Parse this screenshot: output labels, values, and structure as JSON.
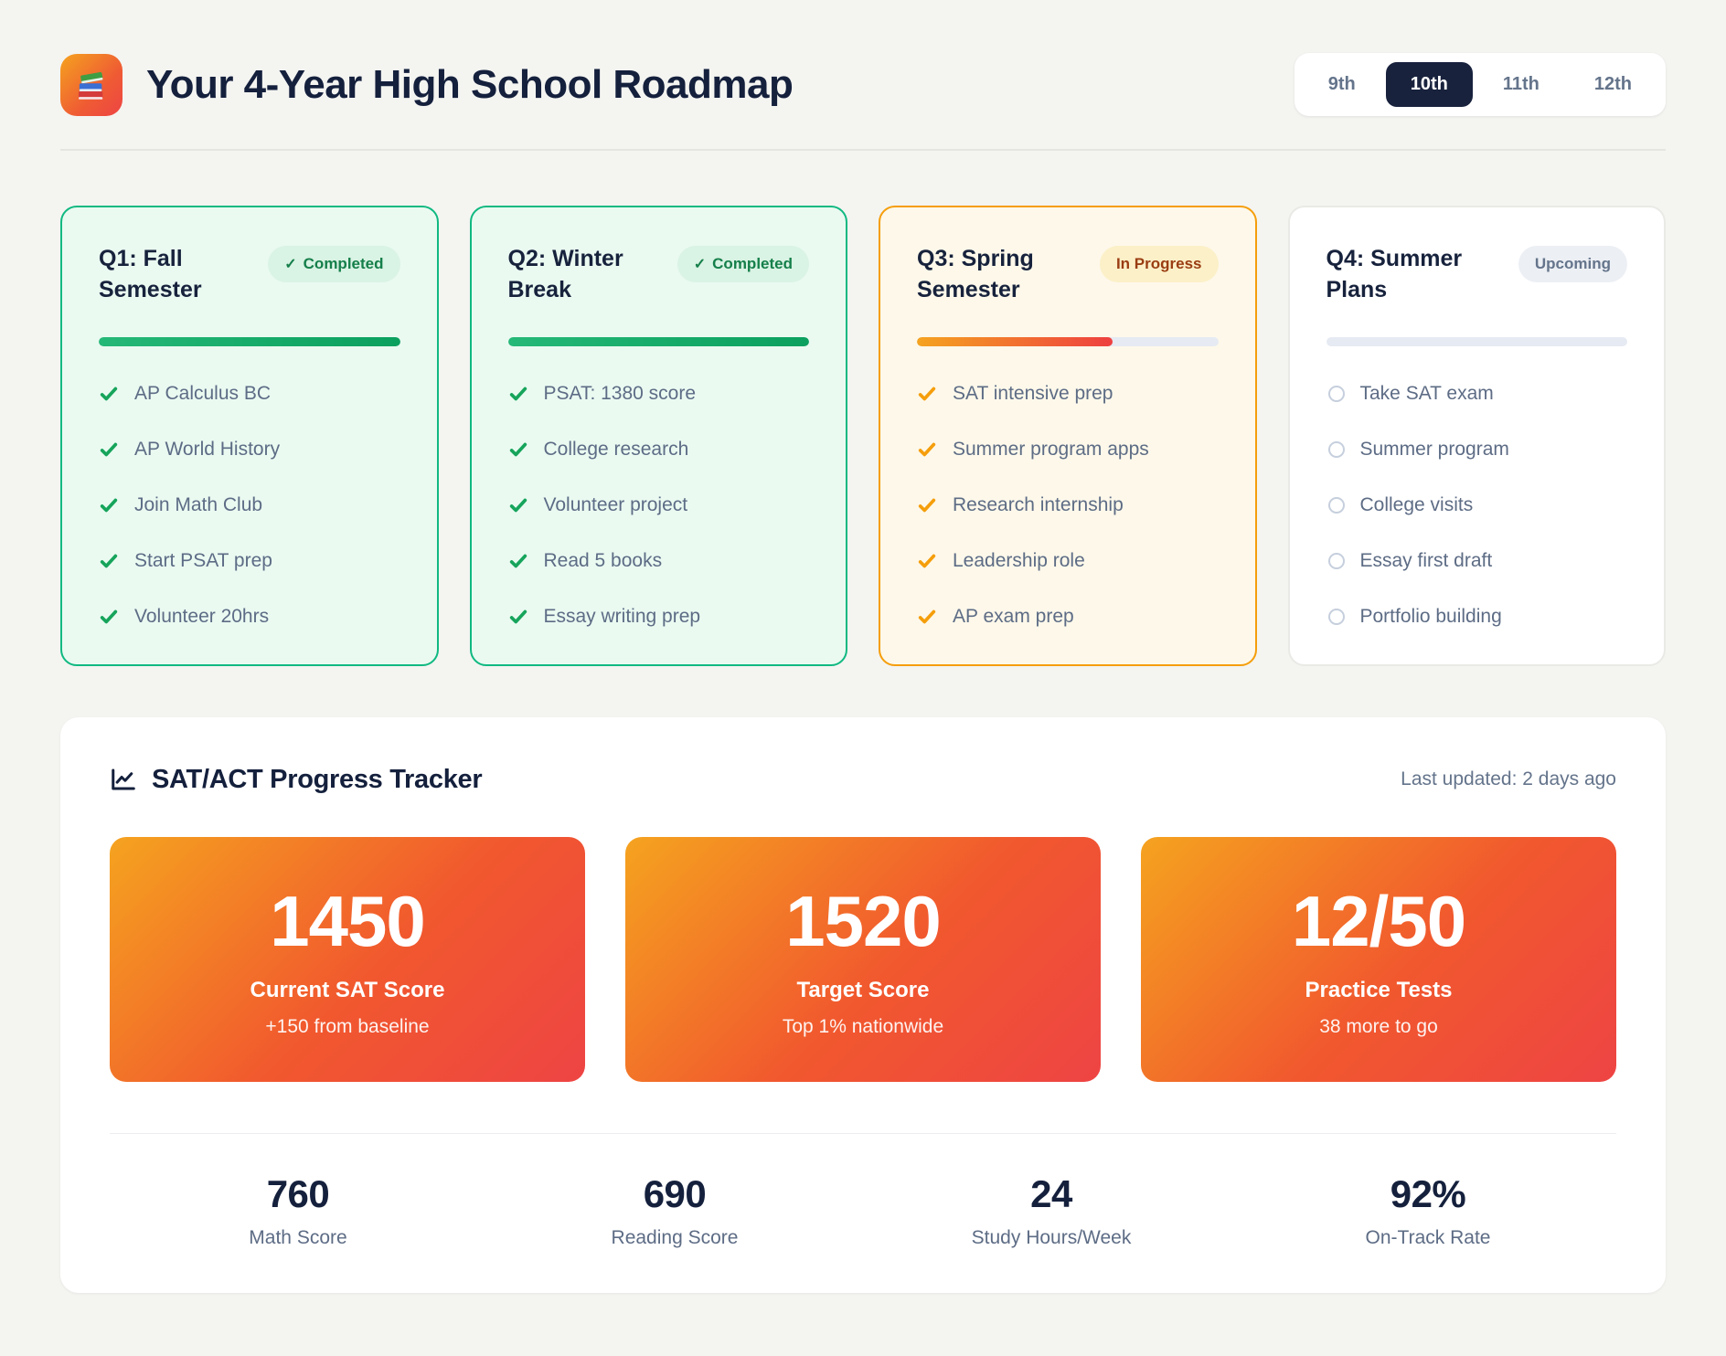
{
  "header": {
    "logo_icon": "books",
    "title": "Your 4-Year High School Roadmap",
    "tabs": [
      {
        "label": "9th",
        "active": false
      },
      {
        "label": "10th",
        "active": true
      },
      {
        "label": "11th",
        "active": false
      },
      {
        "label": "12th",
        "active": false
      }
    ]
  },
  "quarters": [
    {
      "title": "Q1: Fall Semester",
      "status": "Completed",
      "status_check": "✓",
      "progress_percent": 100,
      "items": [
        "AP Calculus BC",
        "AP World History",
        "Join Math Club",
        "Start PSAT prep",
        "Volunteer 20hrs"
      ]
    },
    {
      "title": "Q2: Winter Break",
      "status": "Completed",
      "status_check": "✓",
      "progress_percent": 100,
      "items": [
        "PSAT: 1380 score",
        "College research",
        "Volunteer project",
        "Read 5 books",
        "Essay writing prep"
      ]
    },
    {
      "title": "Q3: Spring Semester",
      "status": "In Progress",
      "status_check": "",
      "progress_percent": 65,
      "items": [
        "SAT intensive prep",
        "Summer program apps",
        "Research internship",
        "Leadership role",
        "AP exam prep"
      ]
    },
    {
      "title": "Q4: Summer Plans",
      "status": "Upcoming",
      "status_check": "",
      "progress_percent": 0,
      "items": [
        "Take SAT exam",
        "Summer program",
        "College visits",
        "Essay first draft",
        "Portfolio building"
      ]
    }
  ],
  "tracker": {
    "title": "SAT/ACT Progress Tracker",
    "title_icon": "line-chart",
    "last_updated": "Last updated: 2 days ago",
    "stat_cards": [
      {
        "value": "1450",
        "label": "Current SAT Score",
        "sub": "+150 from baseline"
      },
      {
        "value": "1520",
        "label": "Target Score",
        "sub": "Top 1% nationwide"
      },
      {
        "value": "12/50",
        "label": "Practice Tests",
        "sub": "38 more to go"
      }
    ],
    "stats": [
      {
        "value": "760",
        "label": "Math Score"
      },
      {
        "value": "690",
        "label": "Reading Score"
      },
      {
        "value": "24",
        "label": "Study Hours/Week"
      },
      {
        "value": "92%",
        "label": "On-Track Rate"
      }
    ]
  },
  "colors": {
    "page_background": "#f4f4f1",
    "navy_text": "#14203c",
    "slate_text": "#5d6c85",
    "green_accent": "#10b981",
    "green_card_bg": "#eafaf1",
    "completed_badge_bg": "#d9f3e4",
    "completed_badge_text": "#157f4a",
    "orange_accent": "#f59e0b",
    "orange_card_bg": "#fdf8ea",
    "inprogress_badge_bg": "#fcf0c8",
    "inprogress_badge_text": "#9a3d12",
    "upcoming_badge_bg": "#eceff4",
    "upcoming_badge_text": "#64748b",
    "stat_card_gradient_start": "#f5a31f",
    "stat_card_gradient_end": "#ee4444",
    "active_tab_bg": "#18223d"
  }
}
